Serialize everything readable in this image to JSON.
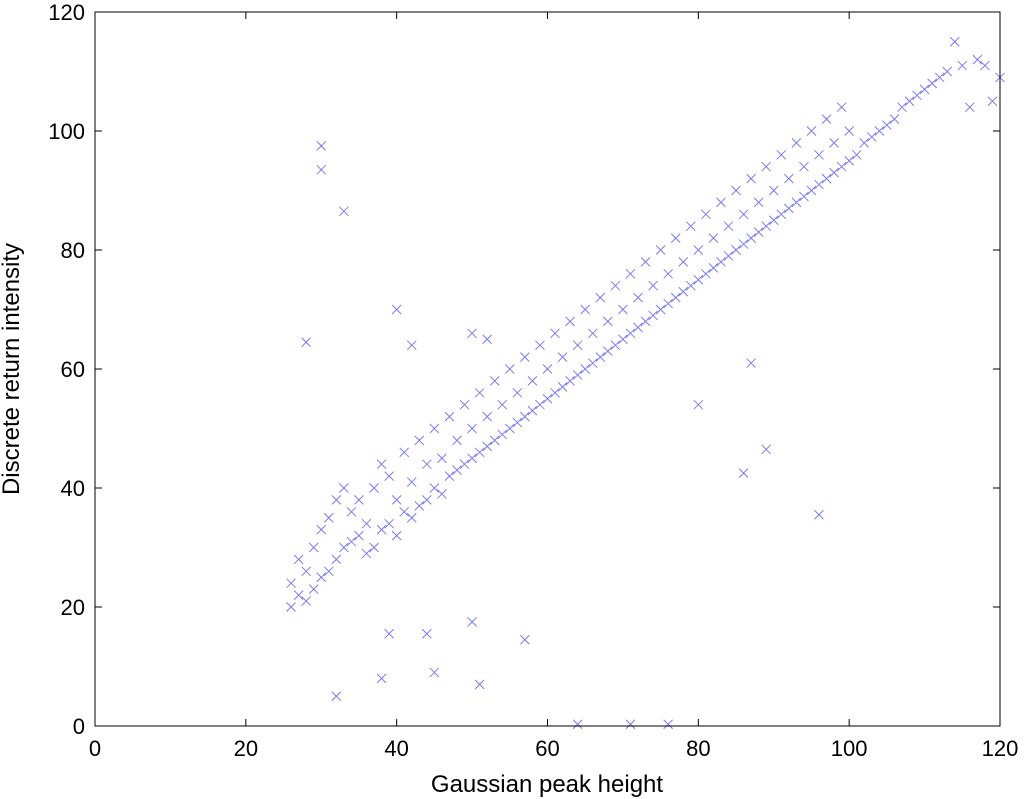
{
  "chart_data": {
    "type": "scatter",
    "marker": "x",
    "marker_color": "#7b7bf0",
    "xlabel": "Gaussian peak height",
    "ylabel": "Discrete return intensity",
    "xlim": [
      0,
      120
    ],
    "ylim": [
      0,
      120
    ],
    "xticks": [
      "0",
      "20",
      "40",
      "60",
      "80",
      "100",
      "120"
    ],
    "yticks": [
      "0",
      "20",
      "40",
      "60",
      "80",
      "100",
      "120"
    ],
    "grid": false,
    "main_trend": {
      "description_points": [
        [
          26,
          22
        ],
        [
          40,
          35
        ],
        [
          60,
          53
        ],
        [
          80,
          73
        ],
        [
          100,
          93
        ],
        [
          112,
          106
        ]
      ]
    },
    "series": [
      {
        "points": [
          [
            26,
            20
          ],
          [
            26,
            24
          ],
          [
            27,
            22
          ],
          [
            27,
            28
          ],
          [
            28,
            21
          ],
          [
            28,
            26
          ],
          [
            29,
            23
          ],
          [
            29,
            30
          ],
          [
            30,
            25
          ],
          [
            30,
            33
          ],
          [
            31,
            26
          ],
          [
            31,
            35
          ],
          [
            32,
            28
          ],
          [
            32,
            38
          ],
          [
            33,
            30
          ],
          [
            33,
            40
          ],
          [
            34,
            31
          ],
          [
            34,
            36
          ],
          [
            35,
            32
          ],
          [
            35,
            38
          ],
          [
            36,
            29
          ],
          [
            36,
            34
          ],
          [
            37,
            30
          ],
          [
            37,
            40
          ],
          [
            38,
            33
          ],
          [
            38,
            44
          ],
          [
            39,
            34
          ],
          [
            39,
            42
          ],
          [
            40,
            32
          ],
          [
            40,
            38
          ],
          [
            41,
            36
          ],
          [
            41,
            46
          ],
          [
            42,
            35
          ],
          [
            42,
            41
          ],
          [
            43,
            37
          ],
          [
            43,
            48
          ],
          [
            44,
            38
          ],
          [
            44,
            44
          ],
          [
            45,
            40
          ],
          [
            45,
            50
          ],
          [
            46,
            39
          ],
          [
            46,
            45
          ],
          [
            47,
            42
          ],
          [
            47,
            52
          ],
          [
            48,
            43
          ],
          [
            48,
            48
          ],
          [
            49,
            44
          ],
          [
            49,
            54
          ],
          [
            50,
            45
          ],
          [
            50,
            50
          ],
          [
            51,
            46
          ],
          [
            51,
            56
          ],
          [
            52,
            47
          ],
          [
            52,
            52
          ],
          [
            53,
            48
          ],
          [
            53,
            58
          ],
          [
            54,
            49
          ],
          [
            54,
            54
          ],
          [
            55,
            50
          ],
          [
            55,
            60
          ],
          [
            56,
            51
          ],
          [
            56,
            56
          ],
          [
            57,
            52
          ],
          [
            57,
            62
          ],
          [
            58,
            53
          ],
          [
            58,
            58
          ],
          [
            59,
            54
          ],
          [
            59,
            64
          ],
          [
            60,
            55
          ],
          [
            60,
            60
          ],
          [
            61,
            56
          ],
          [
            61,
            66
          ],
          [
            62,
            57
          ],
          [
            62,
            62
          ],
          [
            63,
            58
          ],
          [
            63,
            68
          ],
          [
            64,
            59
          ],
          [
            64,
            64
          ],
          [
            65,
            60
          ],
          [
            65,
            70
          ],
          [
            66,
            61
          ],
          [
            66,
            66
          ],
          [
            67,
            62
          ],
          [
            67,
            72
          ],
          [
            68,
            63
          ],
          [
            68,
            68
          ],
          [
            69,
            64
          ],
          [
            69,
            74
          ],
          [
            70,
            65
          ],
          [
            70,
            70
          ],
          [
            71,
            66
          ],
          [
            71,
            76
          ],
          [
            72,
            67
          ],
          [
            72,
            72
          ],
          [
            73,
            68
          ],
          [
            73,
            78
          ],
          [
            74,
            69
          ],
          [
            74,
            74
          ],
          [
            75,
            70
          ],
          [
            75,
            80
          ],
          [
            76,
            71
          ],
          [
            76,
            76
          ],
          [
            77,
            72
          ],
          [
            77,
            82
          ],
          [
            78,
            73
          ],
          [
            78,
            78
          ],
          [
            79,
            74
          ],
          [
            79,
            84
          ],
          [
            80,
            75
          ],
          [
            80,
            80
          ],
          [
            81,
            76
          ],
          [
            81,
            86
          ],
          [
            82,
            77
          ],
          [
            82,
            82
          ],
          [
            83,
            78
          ],
          [
            83,
            88
          ],
          [
            84,
            79
          ],
          [
            84,
            84
          ],
          [
            85,
            80
          ],
          [
            85,
            90
          ],
          [
            86,
            81
          ],
          [
            86,
            86
          ],
          [
            87,
            82
          ],
          [
            87,
            92
          ],
          [
            88,
            83
          ],
          [
            88,
            88
          ],
          [
            89,
            84
          ],
          [
            89,
            94
          ],
          [
            90,
            85
          ],
          [
            90,
            90
          ],
          [
            91,
            86
          ],
          [
            91,
            96
          ],
          [
            92,
            87
          ],
          [
            92,
            92
          ],
          [
            93,
            88
          ],
          [
            93,
            98
          ],
          [
            94,
            89
          ],
          [
            94,
            94
          ],
          [
            95,
            90
          ],
          [
            95,
            100
          ],
          [
            96,
            91
          ],
          [
            96,
            96
          ],
          [
            97,
            92
          ],
          [
            97,
            102
          ],
          [
            98,
            93
          ],
          [
            98,
            98
          ],
          [
            99,
            94
          ],
          [
            99,
            104
          ],
          [
            100,
            95
          ],
          [
            100,
            100
          ],
          [
            101,
            96
          ],
          [
            102,
            98
          ],
          [
            103,
            99
          ],
          [
            104,
            100
          ],
          [
            105,
            101
          ],
          [
            106,
            102
          ],
          [
            107,
            104
          ],
          [
            108,
            105
          ],
          [
            109,
            106
          ],
          [
            110,
            107
          ],
          [
            111,
            108
          ],
          [
            112,
            109
          ],
          [
            113,
            110
          ],
          [
            114,
            115
          ],
          [
            115,
            111
          ],
          [
            116,
            104
          ],
          [
            117,
            112
          ],
          [
            118,
            111
          ],
          [
            119,
            105
          ],
          [
            120,
            109
          ],
          [
            30,
            97.5
          ],
          [
            30,
            93.5
          ],
          [
            33,
            86.5
          ],
          [
            28,
            64.5
          ],
          [
            40,
            70
          ],
          [
            42,
            64
          ],
          [
            50,
            66
          ],
          [
            52,
            65
          ],
          [
            32,
            5
          ],
          [
            38,
            8
          ],
          [
            45,
            9
          ],
          [
            51,
            7
          ],
          [
            39,
            15.5
          ],
          [
            44,
            15.5
          ],
          [
            50,
            17.5
          ],
          [
            57,
            14.5
          ],
          [
            64,
            0.3
          ],
          [
            71,
            0.3
          ],
          [
            76,
            0.3
          ],
          [
            86,
            42.5
          ],
          [
            89,
            46.5
          ],
          [
            96,
            35.5
          ],
          [
            80,
            54
          ],
          [
            87,
            61
          ]
        ]
      }
    ]
  }
}
